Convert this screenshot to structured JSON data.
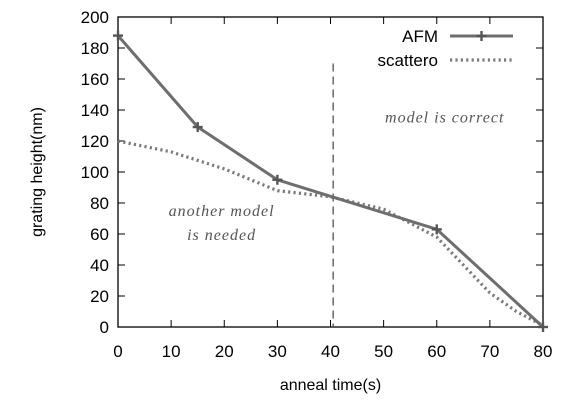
{
  "chart_data": {
    "type": "line",
    "title": "",
    "xlabel": "anneal time(s)",
    "ylabel": "grating height(nm)",
    "xlim": [
      0,
      80
    ],
    "ylim": [
      0,
      200
    ],
    "x_ticks": [
      0,
      10,
      20,
      30,
      40,
      50,
      60,
      70,
      80
    ],
    "y_ticks": [
      0,
      20,
      40,
      60,
      80,
      100,
      120,
      140,
      160,
      180,
      200
    ],
    "grid": false,
    "legend_position": "top-right",
    "series": [
      {
        "name": "AFM",
        "style": "solid-with-cross-markers",
        "color": "#6e6e6e",
        "points": [
          [
            0,
            188
          ],
          [
            15,
            129
          ],
          [
            30,
            95
          ],
          [
            60,
            63
          ],
          [
            80,
            0
          ]
        ]
      },
      {
        "name": "scattero",
        "style": "dotted",
        "color": "#7a7a7a",
        "points": [
          [
            0,
            120
          ],
          [
            10,
            113
          ],
          [
            20,
            102
          ],
          [
            30,
            88
          ],
          [
            40,
            84
          ],
          [
            50,
            76
          ],
          [
            60,
            58
          ],
          [
            70,
            22
          ],
          [
            75,
            10
          ],
          [
            80,
            1
          ]
        ]
      }
    ],
    "reference_line": {
      "x": 40.5,
      "style": "dashed",
      "y_top": 170
    },
    "annotations": [
      {
        "lines": [
          "model is correct"
        ]
      },
      {
        "lines": [
          "another model",
          "is needed"
        ]
      }
    ]
  }
}
